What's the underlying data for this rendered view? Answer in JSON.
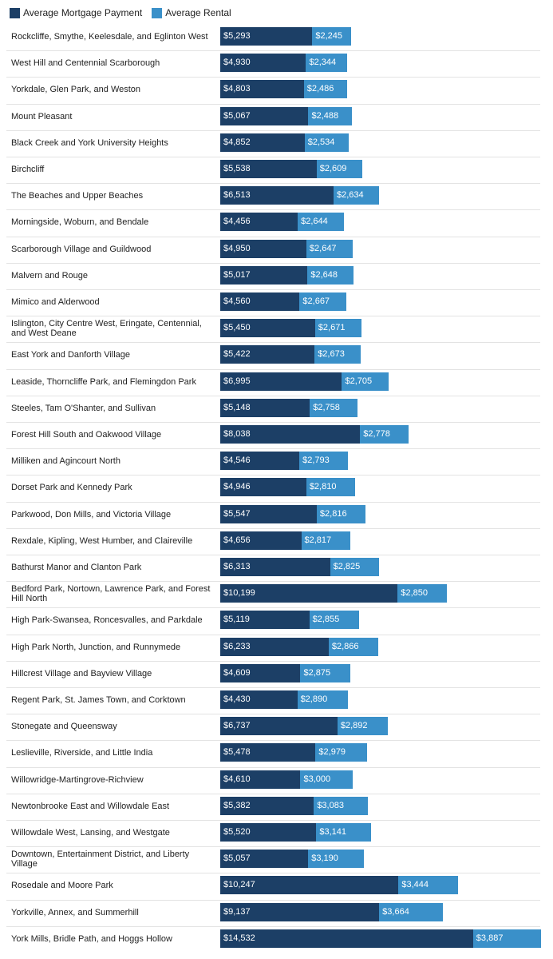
{
  "colors": {
    "mortgage": "#1c3f66",
    "rental": "#3a90c9"
  },
  "legend": [
    {
      "label": "Average Mortgage Payment",
      "color": "#1c3f66"
    },
    {
      "label": "Average Rental",
      "color": "#3a90c9"
    }
  ],
  "chart_data": {
    "type": "bar",
    "orientation": "horizontal",
    "stacked": true,
    "legend_position": "top-left",
    "grid": false,
    "categories": [
      "Rockcliffe, Smythe, Keelesdale, and Eglinton West",
      "West Hill and Centennial Scarborough",
      "Yorkdale, Glen Park, and Weston",
      "Mount Pleasant",
      "Black Creek and York University Heights",
      "Birchcliff",
      "The Beaches and Upper Beaches",
      "Morningside, Woburn, and Bendale",
      "Scarborough Village and Guildwood",
      "Malvern and Rouge",
      "Mimico and Alderwood",
      "Islington, City Centre West, Eringate, Centennial, and West Deane",
      "East York and Danforth Village",
      "Leaside, Thorncliffe Park, and Flemingdon Park",
      "Steeles, Tam O'Shanter, and Sullivan",
      "Forest Hill South and Oakwood Village",
      "Milliken and Agincourt North",
      "Dorset Park and Kennedy Park",
      "Parkwood, Don Mills, and Victoria Village",
      "Rexdale, Kipling, West Humber, and Claireville",
      "Bathurst Manor and Clanton Park",
      "Bedford Park, Nortown, Lawrence Park, and Forest Hill North",
      "High Park-Swansea, Roncesvalles, and Parkdale",
      "High Park North, Junction, and Runnymede",
      "Hillcrest Village and Bayview Village",
      "Regent Park, St. James Town, and Corktown",
      "Stonegate and Queensway",
      "Leslieville, Riverside, and Little India",
      "Willowridge-Martingrove-Richview",
      "Newtonbrooke East and Willowdale East",
      "Willowdale West, Lansing, and Westgate",
      "Downtown, Entertainment District, and Liberty Village",
      "Rosedale and Moore Park",
      "Yorkville, Annex, and Summerhill",
      "York Mills, Bridle Path, and Hoggs Hollow"
    ],
    "series": [
      {
        "name": "Average Mortgage Payment",
        "values": [
          5293,
          4930,
          4803,
          5067,
          4852,
          5538,
          6513,
          4456,
          4950,
          5017,
          4560,
          5450,
          5422,
          6995,
          5148,
          8038,
          4546,
          4946,
          5547,
          4656,
          6313,
          10199,
          5119,
          6233,
          4609,
          4430,
          6737,
          5478,
          4610,
          5382,
          5520,
          5057,
          10247,
          9137,
          14532
        ],
        "labels": [
          "$5,293",
          "$4,930",
          "$4,803",
          "$5,067",
          "$4,852",
          "$5,538",
          "$6,513",
          "$4,456",
          "$4,950",
          "$5,017",
          "$4,560",
          "$5,450",
          "$5,422",
          "$6,995",
          "$5,148",
          "$8,038",
          "$4,546",
          "$4,946",
          "$5,547",
          "$4,656",
          "$6,313",
          "$10,199",
          "$5,119",
          "$6,233",
          "$4,609",
          "$4,430",
          "$6,737",
          "$5,478",
          "$4,610",
          "$5,382",
          "$5,520",
          "$5,057",
          "$10,247",
          "$9,137",
          "$14,532"
        ]
      },
      {
        "name": "Average Rental",
        "values": [
          2245,
          2344,
          2486,
          2488,
          2534,
          2609,
          2634,
          2644,
          2647,
          2648,
          2667,
          2671,
          2673,
          2705,
          2758,
          2778,
          2793,
          2810,
          2816,
          2817,
          2825,
          2850,
          2855,
          2866,
          2875,
          2890,
          2892,
          2979,
          3000,
          3083,
          3141,
          3190,
          3444,
          3664,
          3887
        ],
        "labels": [
          "$2,245",
          "$2,344",
          "$2,486",
          "$2,488",
          "$2,534",
          "$2,609",
          "$2,634",
          "$2,644",
          "$2,647",
          "$2,648",
          "$2,667",
          "$2,671",
          "$2,673",
          "$2,705",
          "$2,758",
          "$2,778",
          "$2,793",
          "$2,810",
          "$2,816",
          "$2,817",
          "$2,825",
          "$2,850",
          "$2,855",
          "$2,866",
          "$2,875",
          "$2,890",
          "$2,892",
          "$2,979",
          "$3,000",
          "$3,083",
          "$3,141",
          "$3,190",
          "$3,444",
          "$3,664",
          "$3,887"
        ]
      }
    ]
  }
}
